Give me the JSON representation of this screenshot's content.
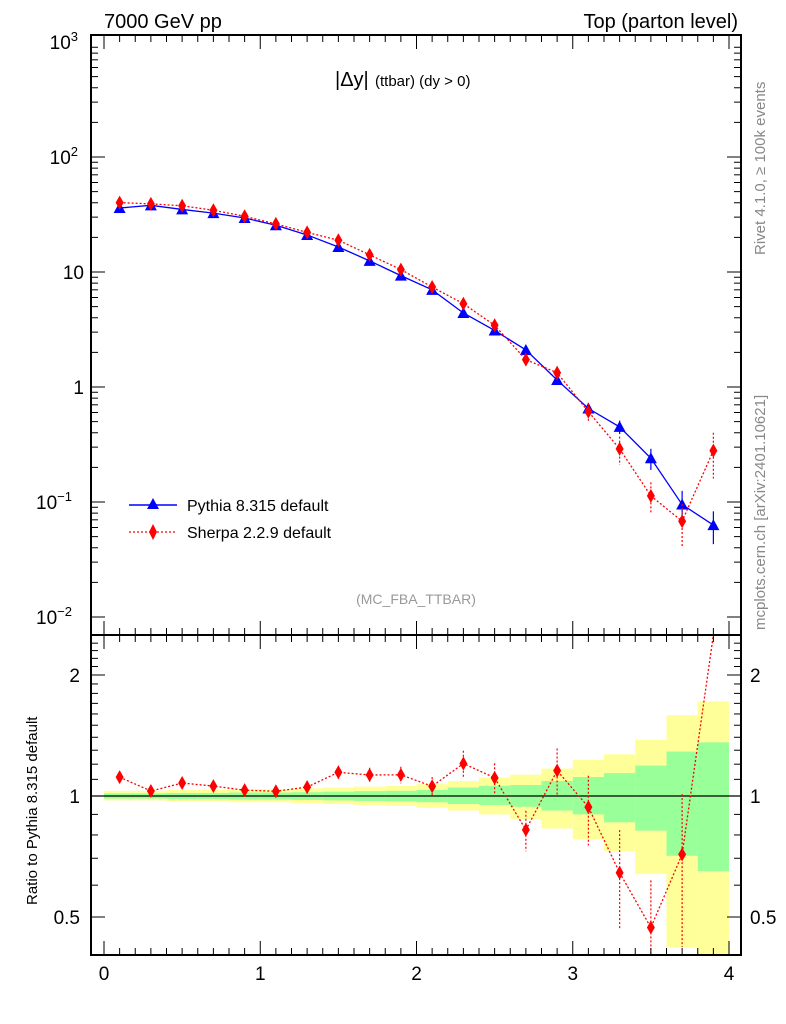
{
  "header": {
    "left": "7000 GeV pp",
    "right": "Top (parton level)"
  },
  "side_labels": {
    "rivet": "Rivet 4.1.0, ≥ 100k events",
    "mcplots": "mcplots.cern.ch [arXiv:2401.10621]"
  },
  "chart_data": [
    {
      "type": "line",
      "title_main": "|Δy|",
      "title_sub": "(ttbar) (dy > 0)",
      "watermark": "(MC_FBA_TTBAR)",
      "xlim": [
        0,
        4
      ],
      "ylim": [
        0.01,
        1000
      ],
      "yscale": "log",
      "legend": "bottom-left",
      "ytick_labels": [
        {
          "v": 1000,
          "base": "10",
          "exp": "3"
        },
        {
          "v": 100,
          "base": "10",
          "exp": "2"
        },
        {
          "v": 10,
          "base": "10",
          "exp": ""
        },
        {
          "v": 1,
          "base": "1",
          "exp": ""
        },
        {
          "v": 0.1,
          "base": "10",
          "exp": "−1"
        },
        {
          "v": 0.01,
          "base": "10",
          "exp": "−2"
        }
      ],
      "x": [
        0.1,
        0.3,
        0.5,
        0.7,
        0.9,
        1.1,
        1.3,
        1.5,
        1.7,
        1.9,
        2.1,
        2.3,
        2.5,
        2.7,
        2.9,
        3.1,
        3.3,
        3.5,
        3.7,
        3.9
      ],
      "series": [
        {
          "name": "Pythia 8.315 default",
          "color": "#0000ff",
          "marker": "triangle",
          "style": "solid",
          "values": [
            36,
            38,
            35,
            32.5,
            29.5,
            25.5,
            21,
            16.5,
            12.5,
            9.3,
            7.0,
            4.4,
            3.1,
            2.1,
            1.15,
            0.65,
            0.45,
            0.24,
            0.095,
            0.063
          ],
          "errors": [
            0.8,
            0.8,
            0.7,
            0.7,
            0.6,
            0.6,
            0.5,
            0.4,
            0.35,
            0.3,
            0.25,
            0.2,
            0.15,
            0.12,
            0.08,
            0.06,
            0.06,
            0.05,
            0.03,
            0.02
          ]
        },
        {
          "name": "Sherpa 2.2.9 default",
          "color": "#ff0000",
          "marker": "diamond",
          "style": "dotted",
          "values": [
            40.1,
            39.1,
            37.7,
            34.4,
            30.5,
            26.2,
            22.1,
            18.9,
            14.1,
            10.5,
            7.4,
            5.3,
            3.44,
            1.73,
            1.33,
            0.61,
            0.29,
            0.113,
            0.068,
            0.28
          ],
          "errors": [
            1.2,
            1.1,
            1.1,
            1.0,
            0.9,
            0.8,
            0.8,
            0.7,
            0.6,
            0.5,
            0.4,
            0.4,
            0.3,
            0.2,
            0.18,
            0.12,
            0.08,
            0.035,
            0.028,
            0.12
          ]
        }
      ]
    },
    {
      "type": "line",
      "ylabel": "Ratio to Pythia 8.315 default",
      "xlim": [
        0,
        4
      ],
      "ylim": [
        0.4,
        2.56
      ],
      "yscale": "log",
      "xtick_labels": [
        "0",
        "1",
        "2",
        "3",
        "4"
      ],
      "ytick_labels": [
        {
          "v": 2,
          "label": "2"
        },
        {
          "v": 1,
          "label": "1"
        },
        {
          "v": 0.5,
          "label": "0.5"
        }
      ],
      "bin_edges": [
        0,
        0.2,
        0.4,
        0.6,
        0.8,
        1.0,
        1.2,
        1.4,
        1.6,
        1.8,
        2.0,
        2.2,
        2.4,
        2.6,
        2.8,
        3.0,
        3.2,
        3.4,
        3.6,
        3.8,
        4.0
      ],
      "band_total": {
        "color": "#ffff99",
        "up": [
          1.03,
          1.03,
          1.035,
          1.035,
          1.04,
          1.04,
          1.045,
          1.05,
          1.055,
          1.06,
          1.07,
          1.09,
          1.11,
          1.13,
          1.17,
          1.23,
          1.27,
          1.38,
          1.59,
          1.72
        ],
        "down": [
          0.975,
          0.975,
          0.97,
          0.97,
          0.965,
          0.965,
          0.96,
          0.955,
          0.95,
          0.945,
          0.935,
          0.92,
          0.9,
          0.877,
          0.83,
          0.78,
          0.73,
          0.64,
          0.42,
          0.38
        ]
      },
      "band_stat": {
        "color": "#99ff99",
        "up": [
          1.015,
          1.015,
          1.017,
          1.017,
          1.02,
          1.02,
          1.022,
          1.025,
          1.028,
          1.03,
          1.035,
          1.05,
          1.06,
          1.065,
          1.09,
          1.115,
          1.14,
          1.19,
          1.29,
          1.36
        ],
        "down": [
          0.985,
          0.985,
          0.983,
          0.983,
          0.98,
          0.98,
          0.978,
          0.975,
          0.972,
          0.97,
          0.965,
          0.955,
          0.95,
          0.94,
          0.92,
          0.9,
          0.86,
          0.82,
          0.71,
          0.65
        ]
      }
    }
  ]
}
